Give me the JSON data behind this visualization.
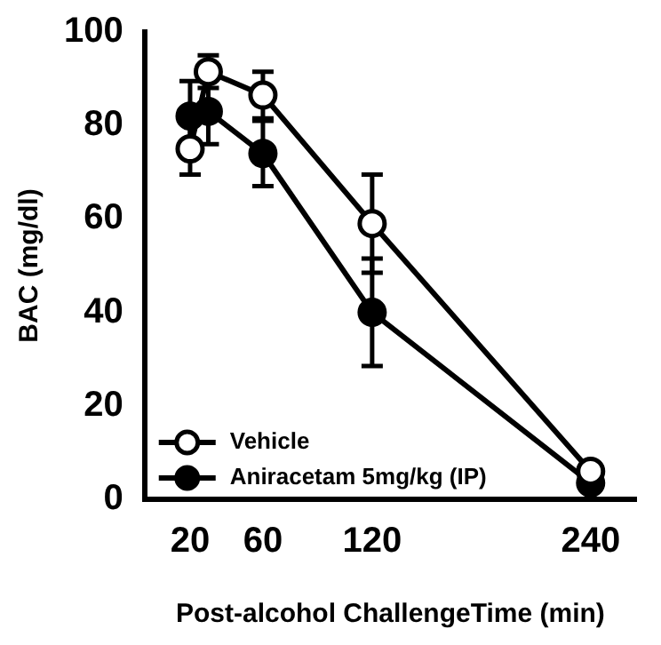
{
  "chart_data": {
    "type": "line",
    "xlabel": "Post-alcohol ChallengeTime (min)",
    "ylabel": "BAC (mg/dl)",
    "x": [
      20,
      30,
      60,
      120,
      240
    ],
    "series": [
      {
        "name": "Vehicle",
        "color": "#000000",
        "values": [
          75,
          91.5,
          86.5,
          59,
          6
        ],
        "errors": [
          5.5,
          3.5,
          5,
          10.5,
          null
        ]
      },
      {
        "name": "Aniracetam 5mg/kg (IP)",
        "color": "#000000",
        "values": [
          82,
          83,
          74,
          40,
          3.5
        ],
        "errors": [
          7.5,
          7,
          7,
          11.5,
          null
        ]
      }
    ],
    "xlim": [
      -5,
      265
    ],
    "xticks": [
      20,
      60,
      120,
      240
    ],
    "ylim": [
      0,
      100
    ],
    "yticks": [
      0,
      20,
      40,
      60,
      80,
      100
    ],
    "grid": false,
    "legend": "bottom left",
    "marker": "circle",
    "line_style": "solid"
  }
}
